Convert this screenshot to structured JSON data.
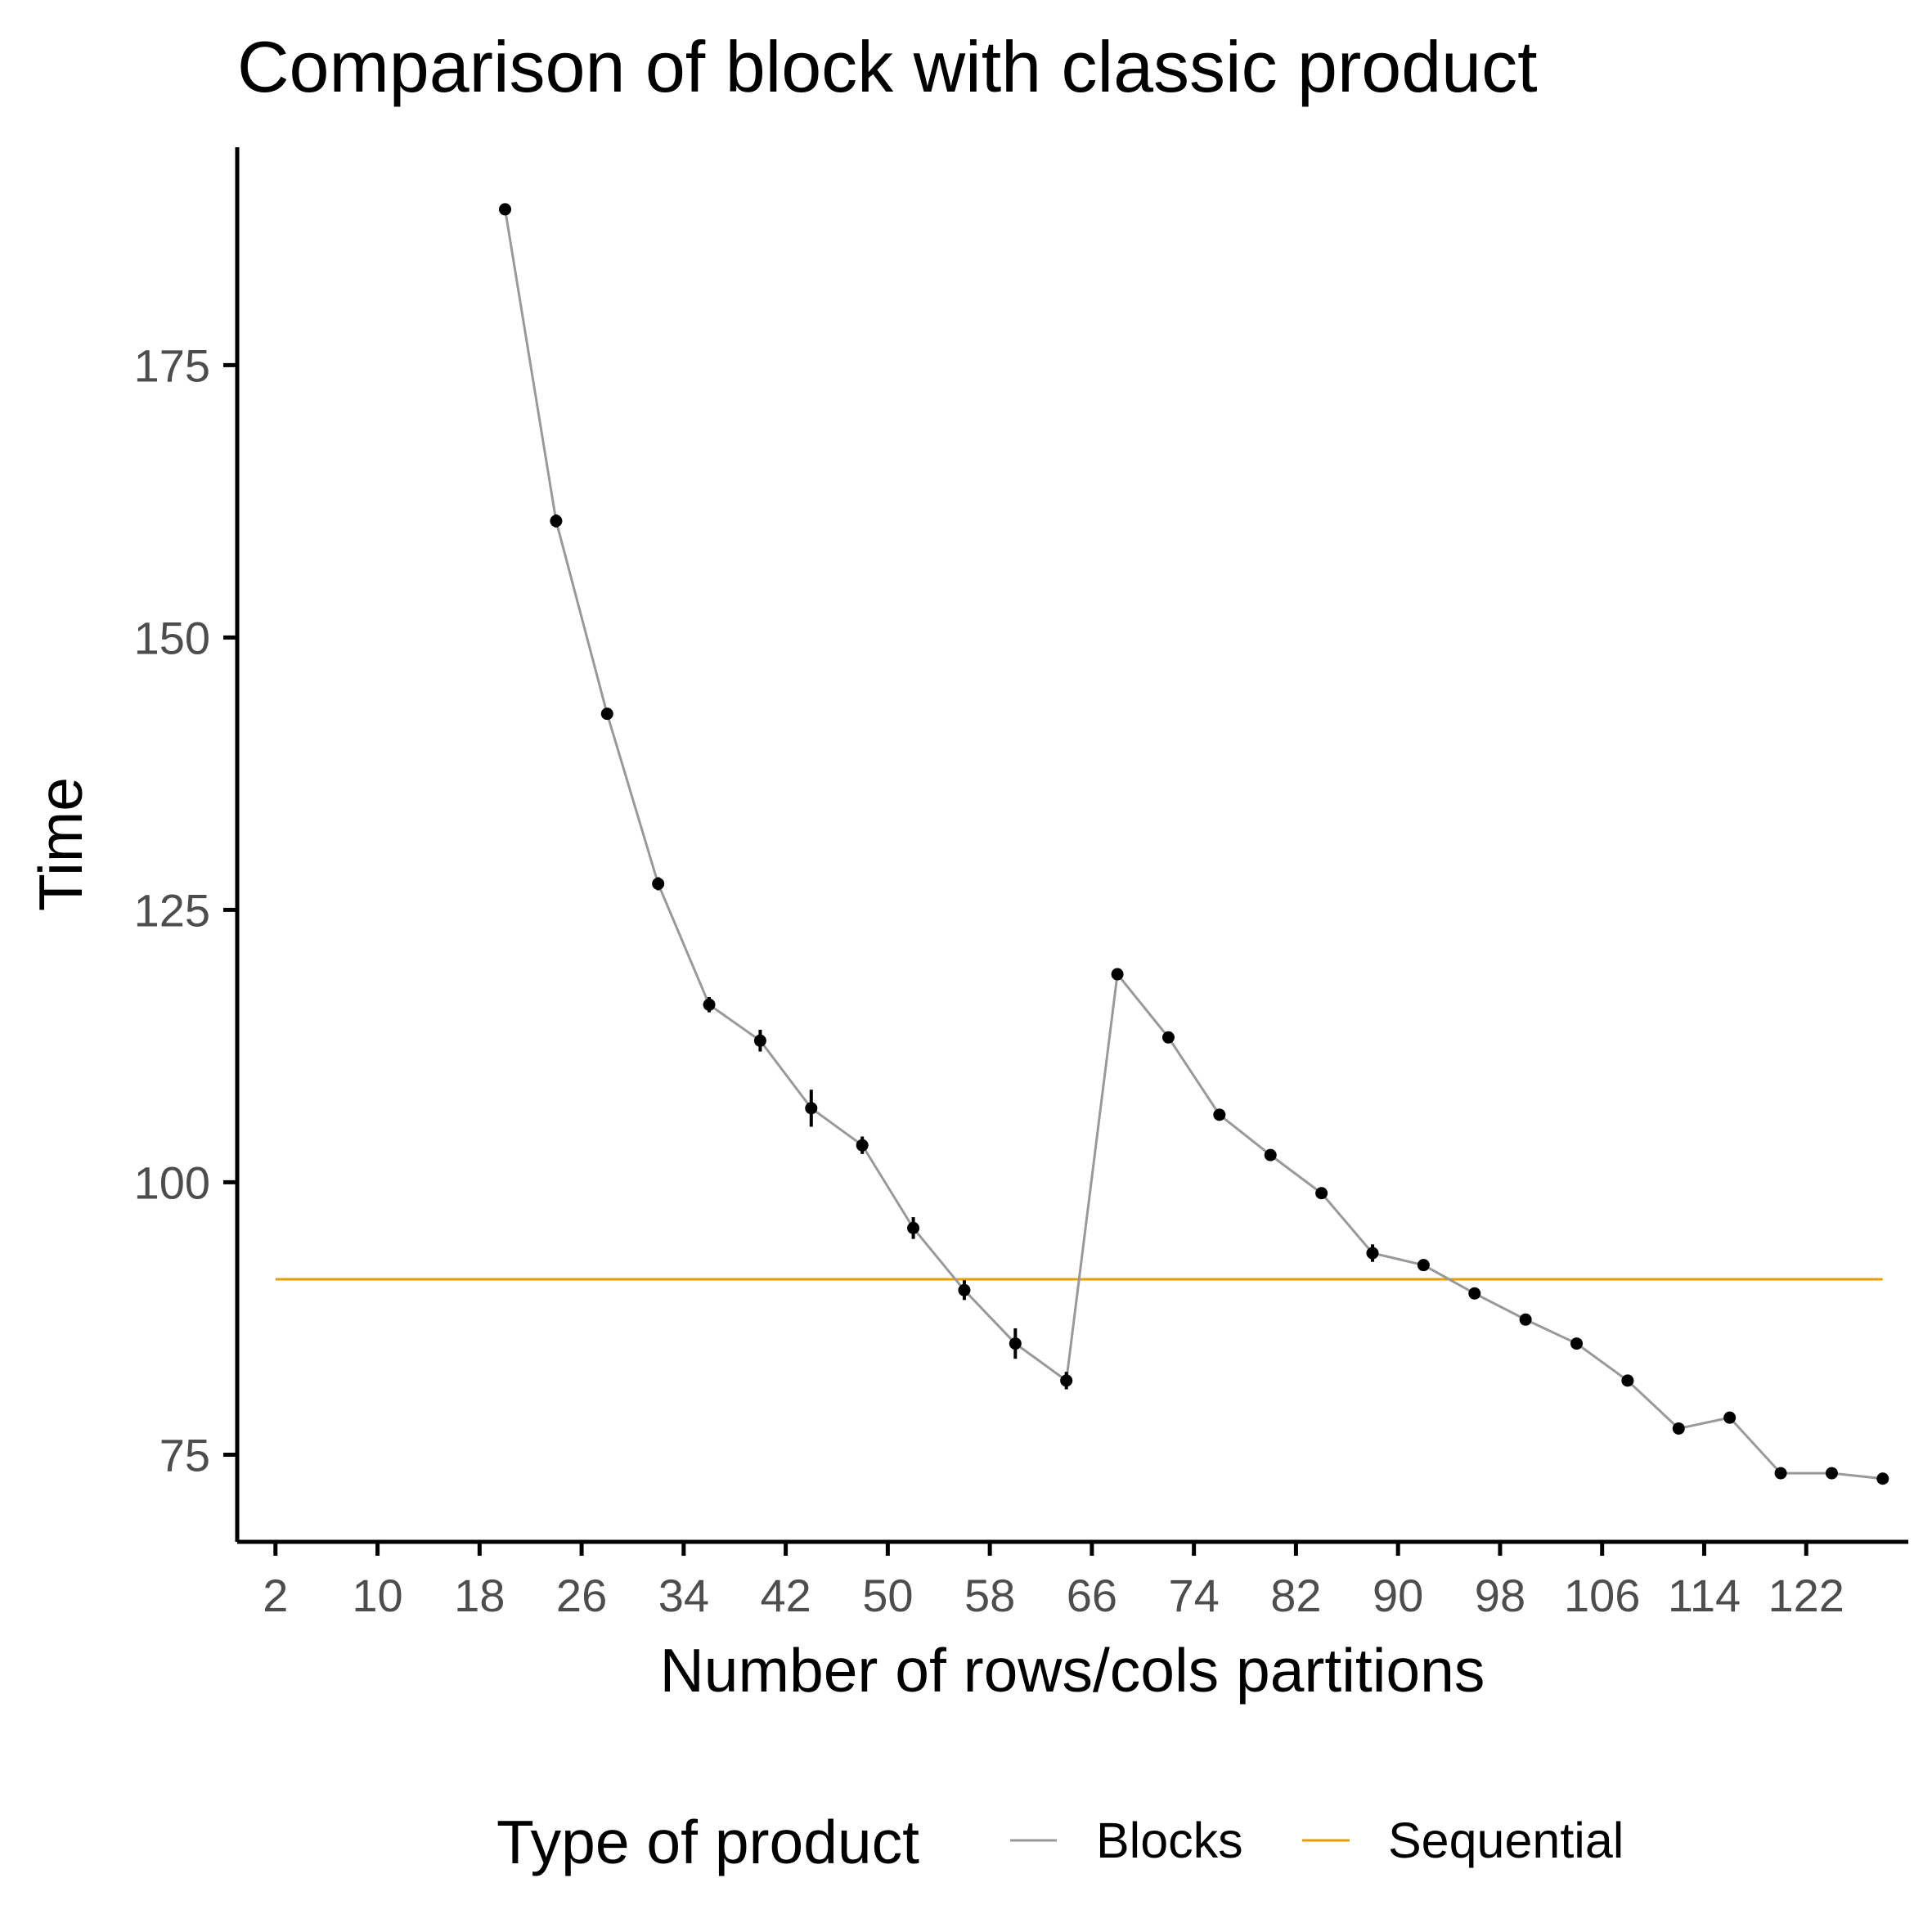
{
  "chart_data": {
    "type": "line",
    "title": "Comparison of block with classic product",
    "xlabel": "Number of rows/cols partitions",
    "ylabel": "Time",
    "xlim": [
      -1,
      130
    ],
    "ylim": [
      67,
      195
    ],
    "x_ticks": [
      2,
      10,
      18,
      26,
      34,
      42,
      50,
      58,
      66,
      74,
      82,
      90,
      98,
      106,
      114,
      122
    ],
    "y_ticks": [
      75,
      100,
      125,
      150,
      175
    ],
    "grid": false,
    "legend": {
      "title": "Type of product",
      "position": "bottom"
    },
    "series": [
      {
        "name": "Blocks",
        "color": "#999999",
        "x": [
          20,
          24,
          28,
          32,
          36,
          40,
          44,
          48,
          52,
          56,
          60,
          64,
          68,
          72,
          76,
          80,
          84,
          88,
          92,
          96,
          100,
          104,
          108,
          112,
          116,
          120,
          124,
          128
        ],
        "y": [
          189.3,
          160.7,
          143.0,
          127.4,
          116.3,
          113.0,
          106.8,
          103.4,
          95.8,
          90.1,
          85.2,
          81.8,
          119.1,
          113.3,
          106.2,
          102.5,
          99.0,
          93.5,
          92.4,
          89.8,
          87.4,
          85.2,
          81.8,
          77.4,
          78.4,
          73.3,
          73.3,
          72.8
        ],
        "error": [
          0.4,
          0.6,
          0.4,
          0.6,
          0.7,
          1.0,
          1.7,
          0.8,
          1.0,
          0.9,
          1.4,
          0.8,
          0.5,
          0.5,
          0.4,
          0.4,
          0.4,
          0.8,
          0.4,
          0.4,
          0.4,
          0.4,
          0.4,
          0.4,
          0.4,
          0.4,
          0.4,
          0.4
        ]
      },
      {
        "name": "Sequential",
        "color": "#E69F00",
        "x": [
          2,
          128
        ],
        "y": [
          91.1,
          91.1
        ]
      }
    ]
  }
}
